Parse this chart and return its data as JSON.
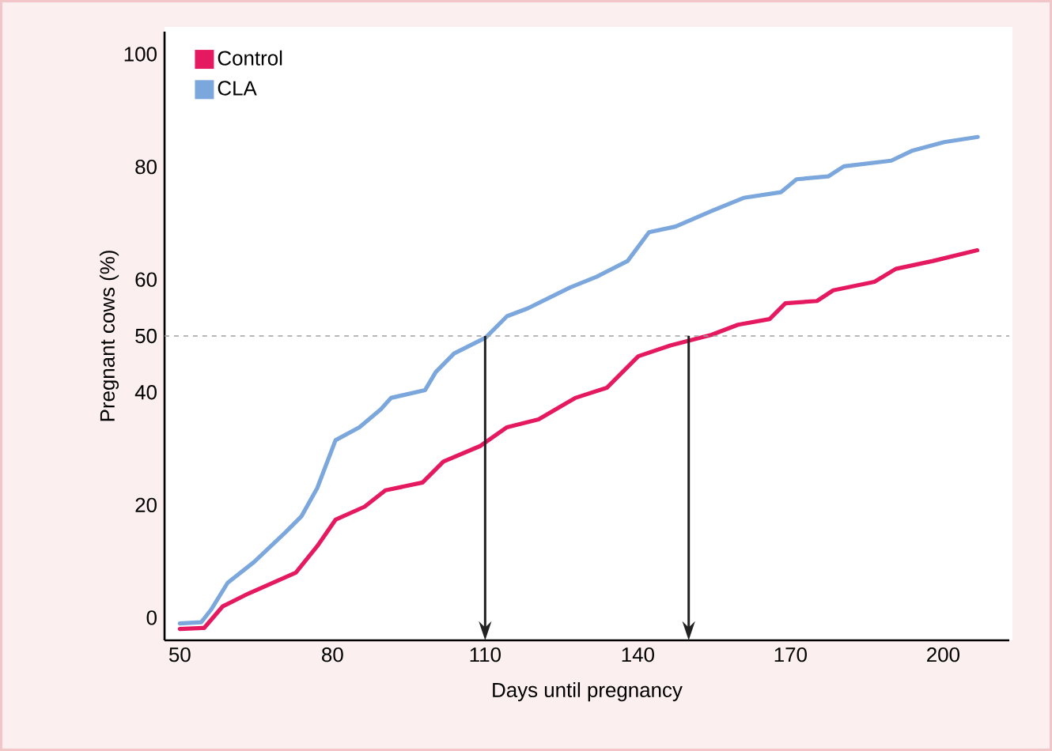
{
  "chart_data": {
    "type": "line",
    "xlabel": "Days until pregnancy",
    "ylabel": "Pregnant cows (%)",
    "xlim": [
      47,
      213
    ],
    "ylim": [
      -4,
      104
    ],
    "xticks": [
      50,
      80,
      110,
      140,
      170,
      200
    ],
    "yticks": [
      0,
      20,
      40,
      50,
      60,
      80,
      100
    ],
    "legend": "top left",
    "grid": false,
    "marker": "none",
    "line_style": "solid",
    "ref_lines": [
      {
        "axis": "y",
        "value": 50,
        "color": "#a0a0a0",
        "line_style": "dashed"
      },
      {
        "axis": "x",
        "value": 110,
        "color": "#222222",
        "line_style": "solid"
      },
      {
        "axis": "x",
        "value": 150,
        "color": "#222222",
        "line_style": "solid"
      }
    ],
    "series": [
      {
        "name": "Control",
        "color": "#e5195f",
        "x": [
          50,
          54.8,
          58.4,
          63.5,
          72.8,
          77,
          80.6,
          86.3,
          90.4,
          97.7,
          101.8,
          109.1,
          114.3,
          120.5,
          127.7,
          133.9,
          140.1,
          146.4,
          154.5,
          159.7,
          165.9,
          169,
          175.2,
          178.4,
          186.5,
          190.7,
          198,
          206.7
        ],
        "values": [
          -2,
          -1.8,
          2,
          4.3,
          8,
          12.7,
          17.4,
          19.7,
          22.6,
          24,
          27.7,
          30.5,
          33.8,
          35.2,
          39,
          40.8,
          46.4,
          48.3,
          50.2,
          52,
          53,
          55.8,
          56.2,
          58.1,
          59.6,
          61.9,
          63.3,
          65.2
        ]
      },
      {
        "name": "CLA",
        "color": "#7ba7dc",
        "x": [
          50,
          54.2,
          56.2,
          59.4,
          64.6,
          70.8,
          73.9,
          77,
          80.6,
          85.3,
          89.5,
          91.5,
          98.2,
          100.3,
          103.9,
          110.1,
          114.3,
          118.4,
          126.7,
          131.9,
          138,
          142.2,
          147.4,
          154.6,
          160.8,
          168.1,
          171.2,
          177.4,
          180.5,
          189.8,
          194,
          200.2,
          206.8
        ],
        "values": [
          -1,
          -0.8,
          1.5,
          6.2,
          9.9,
          15.2,
          18,
          23,
          31.5,
          33.8,
          37,
          39,
          40.4,
          43.6,
          46.9,
          49.7,
          53.5,
          54.9,
          58.6,
          60.5,
          63.3,
          68.4,
          69.4,
          72.2,
          74.5,
          75.5,
          77.8,
          78.3,
          80.1,
          81.1,
          82.9,
          84.4,
          85.3
        ]
      }
    ]
  }
}
